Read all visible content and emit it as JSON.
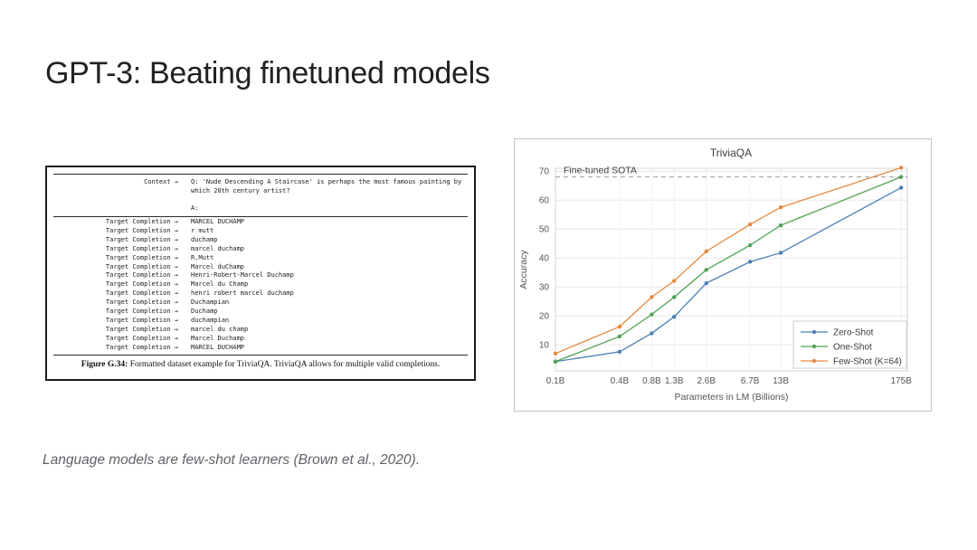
{
  "slide": {
    "title": "GPT-3: Beating finetuned models",
    "citation": "Language models are few-shot learners (Brown et al., 2020)."
  },
  "figure": {
    "context_label": "Context →",
    "question": "Q: 'Nude Descending A Staircase' is perhaps the most famous painting by which 20th century artist?",
    "answer_prefix": "A:",
    "target_label": "Target Completion →",
    "completions": [
      "MARCEL DUCHAMP",
      "r mutt",
      "duchamp",
      "marcel duchamp",
      "R.Mutt",
      "Marcel duChamp",
      "Henri-Robert-Marcel Duchamp",
      "Marcel du Champ",
      "henri robert marcel duchamp",
      "Duchampian",
      "Duchamp",
      "duchampian",
      "marcel du champ",
      "Marcel Duchamp",
      "MARCEL DUCHAMP"
    ],
    "caption_label": "Figure G.34:",
    "caption_text": "Formatted dataset example for TriviaQA. TriviaQA allows for multiple valid completions."
  },
  "chart_data": {
    "type": "line",
    "title": "TriviaQA",
    "xlabel": "Parameters in LM (Billions)",
    "ylabel": "Accuracy",
    "x_scale": "log",
    "x": [
      0.1,
      0.4,
      0.8,
      1.3,
      2.6,
      6.7,
      13,
      175
    ],
    "x_tick_labels": [
      "0.1B",
      "0.4B",
      "0.8B",
      "1.3B",
      "2.6B",
      "6.7B",
      "13B",
      "175B"
    ],
    "y_ticks": [
      10,
      20,
      30,
      40,
      50,
      60,
      70
    ],
    "ylim": [
      1,
      71
    ],
    "grid": true,
    "legend_position": "lower right",
    "reference_line": {
      "label": "Fine-tuned SOTA",
      "value": 68.0,
      "color": "#999999",
      "style": "dashed"
    },
    "series": [
      {
        "name": "Zero-Shot",
        "color": "#4b7fb5",
        "values": [
          4.2,
          7.6,
          14.0,
          19.7,
          31.3,
          38.7,
          41.8,
          64.3
        ]
      },
      {
        "name": "One-Shot",
        "color": "#4fa357",
        "values": [
          4.2,
          12.9,
          20.5,
          26.5,
          35.9,
          44.4,
          51.3,
          68.0
        ]
      },
      {
        "name": "Few-Shot (K=64)",
        "color": "#e58a40",
        "values": [
          7.0,
          16.3,
          26.5,
          32.1,
          42.3,
          51.6,
          57.5,
          71.2
        ]
      }
    ]
  }
}
